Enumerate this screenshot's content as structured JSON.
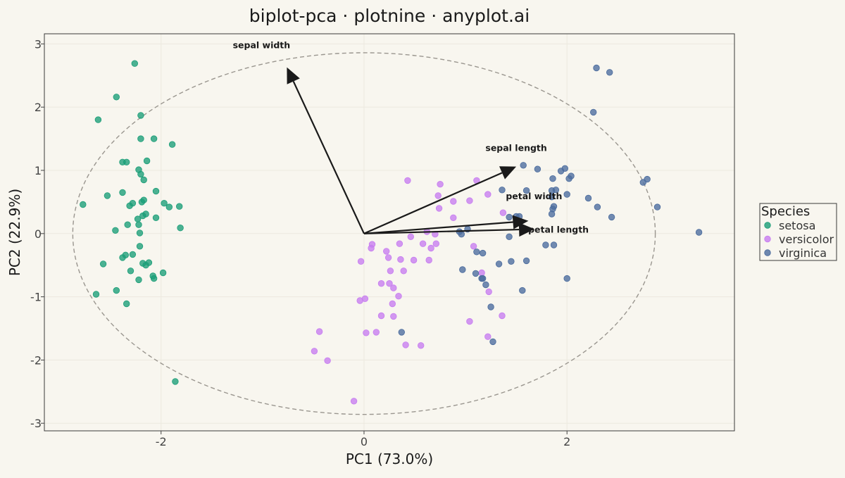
{
  "colors": {
    "background": "#f8f6ef",
    "panel_border": "#3a3a3a",
    "grid": "#ece9df",
    "axis_text": "#444444",
    "title_text": "#1a1a1a",
    "ellipse": "#9a968f",
    "arrow": "#1a1a1a",
    "series": {
      "setosa": "#1a9e77",
      "versicolor": "#c77cf0",
      "virginica": "#4a6b9d"
    }
  },
  "chart_data": {
    "type": "scatter",
    "title": "biplot-pca · plotnine · anyplot.ai",
    "xlabel": "PC1 (73.0%)",
    "ylabel": "PC2 (22.9%)",
    "xlim": [
      -3.15,
      3.65
    ],
    "ylim": [
      -3.12,
      3.16
    ],
    "x_ticks": [
      -2,
      0,
      2
    ],
    "y_ticks": [
      -3,
      -2,
      -1,
      0,
      1,
      2,
      3
    ],
    "grid": true,
    "legend": {
      "title": "Species",
      "position": "right"
    },
    "ellipse": {
      "center": [
        0,
        0
      ],
      "rx": 2.87,
      "ry": 2.86,
      "style": "dashed"
    },
    "loadings": [
      {
        "label": "sepal length",
        "x": 1.5,
        "y": 1.06
      },
      {
        "label": "sepal width",
        "x": -0.76,
        "y": 2.63
      },
      {
        "label": "petal width",
        "x": 1.62,
        "y": 0.2
      },
      {
        "label": "petal length",
        "x": 1.68,
        "y": 0.07
      }
    ],
    "series": [
      {
        "name": "setosa",
        "points": [
          [
            -2.26,
            2.69
          ],
          [
            -2.44,
            2.16
          ],
          [
            -2.62,
            1.8
          ],
          [
            -2.2,
            1.87
          ],
          [
            -2.2,
            1.5
          ],
          [
            -2.07,
            1.5
          ],
          [
            -1.89,
            1.41
          ],
          [
            -2.38,
            1.13
          ],
          [
            -2.34,
            1.13
          ],
          [
            -2.14,
            1.15
          ],
          [
            -2.22,
            1.01
          ],
          [
            -2.2,
            0.94
          ],
          [
            -2.17,
            0.85
          ],
          [
            -2.05,
            0.67
          ],
          [
            -2.38,
            0.65
          ],
          [
            -2.53,
            0.6
          ],
          [
            -2.28,
            0.48
          ],
          [
            -2.31,
            0.44
          ],
          [
            -2.19,
            0.5
          ],
          [
            -2.17,
            0.53
          ],
          [
            -1.97,
            0.48
          ],
          [
            -1.92,
            0.42
          ],
          [
            -1.82,
            0.43
          ],
          [
            -2.77,
            0.46
          ],
          [
            -2.18,
            0.28
          ],
          [
            -2.15,
            0.31
          ],
          [
            -2.05,
            0.25
          ],
          [
            -2.23,
            0.23
          ],
          [
            -2.33,
            0.14
          ],
          [
            -2.22,
            0.14
          ],
          [
            -2.45,
            0.05
          ],
          [
            -2.21,
            0.01
          ],
          [
            -1.81,
            0.09
          ],
          [
            -2.21,
            -0.2
          ],
          [
            -2.35,
            -0.34
          ],
          [
            -2.38,
            -0.38
          ],
          [
            -2.28,
            -0.33
          ],
          [
            -2.18,
            -0.47
          ],
          [
            -2.15,
            -0.5
          ],
          [
            -2.12,
            -0.46
          ],
          [
            -2.57,
            -0.48
          ],
          [
            -1.98,
            -0.62
          ],
          [
            -2.3,
            -0.59
          ],
          [
            -2.08,
            -0.67
          ],
          [
            -2.07,
            -0.71
          ],
          [
            -2.22,
            -0.73
          ],
          [
            -2.44,
            -0.9
          ],
          [
            -2.64,
            -0.96
          ],
          [
            -2.34,
            -1.11
          ],
          [
            -1.86,
            -2.34
          ]
        ]
      },
      {
        "name": "versicolor",
        "points": [
          [
            0.43,
            0.84
          ],
          [
            1.11,
            0.84
          ],
          [
            0.75,
            0.78
          ],
          [
            1.22,
            0.62
          ],
          [
            0.73,
            0.6
          ],
          [
            0.88,
            0.51
          ],
          [
            1.04,
            0.52
          ],
          [
            0.74,
            0.4
          ],
          [
            0.88,
            0.25
          ],
          [
            1.37,
            0.33
          ],
          [
            0.62,
            0.03
          ],
          [
            0.7,
            -0.01
          ],
          [
            0.46,
            -0.05
          ],
          [
            0.58,
            -0.16
          ],
          [
            0.35,
            -0.16
          ],
          [
            0.71,
            -0.16
          ],
          [
            0.66,
            -0.23
          ],
          [
            0.08,
            -0.17
          ],
          [
            0.07,
            -0.23
          ],
          [
            1.08,
            -0.2
          ],
          [
            0.22,
            -0.28
          ],
          [
            0.24,
            -0.38
          ],
          [
            0.36,
            -0.41
          ],
          [
            0.49,
            -0.42
          ],
          [
            0.64,
            -0.42
          ],
          [
            -0.03,
            -0.44
          ],
          [
            0.39,
            -0.59
          ],
          [
            0.26,
            -0.59
          ],
          [
            1.16,
            -0.62
          ],
          [
            0.17,
            -0.79
          ],
          [
            0.25,
            -0.79
          ],
          [
            0.29,
            -0.86
          ],
          [
            1.23,
            -0.92
          ],
          [
            0.34,
            -0.99
          ],
          [
            0.01,
            -1.03
          ],
          [
            -0.04,
            -1.06
          ],
          [
            0.28,
            -1.11
          ],
          [
            0.17,
            -1.3
          ],
          [
            0.29,
            -1.31
          ],
          [
            1.04,
            -1.39
          ],
          [
            -0.44,
            -1.55
          ],
          [
            0.12,
            -1.56
          ],
          [
            0.02,
            -1.57
          ],
          [
            1.22,
            -1.63
          ],
          [
            -0.49,
            -1.86
          ],
          [
            -0.36,
            -2.01
          ],
          [
            -0.1,
            -2.65
          ],
          [
            0.41,
            -1.76
          ],
          [
            0.56,
            -1.77
          ],
          [
            1.36,
            -1.3
          ]
        ]
      },
      {
        "name": "virginica",
        "points": [
          [
            2.29,
            2.62
          ],
          [
            2.42,
            2.55
          ],
          [
            2.26,
            1.92
          ],
          [
            1.57,
            1.08
          ],
          [
            1.71,
            1.02
          ],
          [
            1.98,
            1.03
          ],
          [
            1.94,
            0.99
          ],
          [
            2.04,
            0.91
          ],
          [
            2.02,
            0.87
          ],
          [
            1.86,
            0.87
          ],
          [
            2.79,
            0.86
          ],
          [
            2.75,
            0.81
          ],
          [
            1.36,
            0.69
          ],
          [
            1.6,
            0.68
          ],
          [
            1.85,
            0.68
          ],
          [
            1.89,
            0.69
          ],
          [
            2.0,
            0.62
          ],
          [
            1.85,
            0.58
          ],
          [
            2.21,
            0.56
          ],
          [
            1.87,
            0.43
          ],
          [
            1.86,
            0.39
          ],
          [
            2.3,
            0.42
          ],
          [
            2.89,
            0.42
          ],
          [
            1.85,
            0.31
          ],
          [
            1.5,
            0.27
          ],
          [
            1.53,
            0.27
          ],
          [
            2.44,
            0.26
          ],
          [
            3.3,
            0.02
          ],
          [
            1.02,
            0.07
          ],
          [
            0.94,
            0.03
          ],
          [
            0.96,
            -0.01
          ],
          [
            1.43,
            -0.05
          ],
          [
            1.11,
            -0.29
          ],
          [
            1.17,
            -0.31
          ],
          [
            1.79,
            -0.18
          ],
          [
            1.87,
            -0.18
          ],
          [
            1.6,
            -0.43
          ],
          [
            1.45,
            -0.44
          ],
          [
            1.33,
            -0.48
          ],
          [
            0.97,
            -0.57
          ],
          [
            1.1,
            -0.63
          ],
          [
            1.16,
            -0.71
          ],
          [
            1.2,
            -0.81
          ],
          [
            1.56,
            -0.9
          ],
          [
            2.0,
            -0.71
          ],
          [
            1.25,
            -1.16
          ],
          [
            0.37,
            -1.56
          ],
          [
            1.27,
            -1.71
          ],
          [
            1.17,
            -0.71
          ],
          [
            1.43,
            0.26
          ]
        ]
      }
    ]
  }
}
